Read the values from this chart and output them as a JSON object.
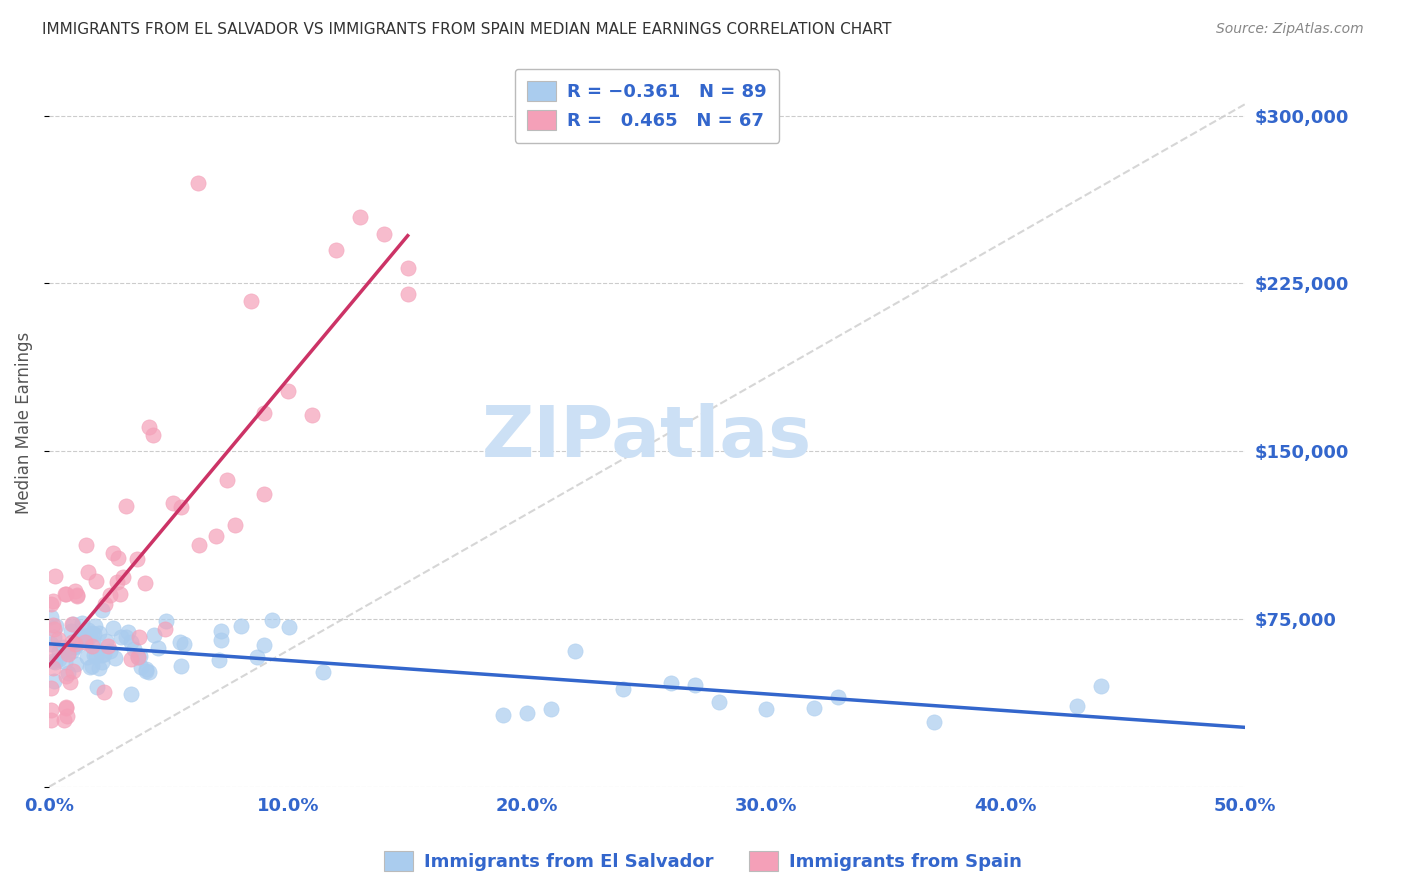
{
  "title": "IMMIGRANTS FROM EL SALVADOR VS IMMIGRANTS FROM SPAIN MEDIAN MALE EARNINGS CORRELATION CHART",
  "source": "Source: ZipAtlas.com",
  "ylabel": "Median Male Earnings",
  "x_min": 0.0,
  "x_max": 0.5,
  "y_min": 0,
  "y_max": 325000,
  "yticks": [
    0,
    75000,
    150000,
    225000,
    300000
  ],
  "ytick_labels_right": [
    "",
    "$75,000",
    "$150,000",
    "$225,000",
    "$300,000"
  ],
  "xtick_vals": [
    0.0,
    0.1,
    0.2,
    0.3,
    0.4,
    0.5
  ],
  "xtick_labels": [
    "0.0%",
    "10.0%",
    "20.0%",
    "30.0%",
    "40.0%",
    "50.0%"
  ],
  "legend_labels": [
    "Immigrants from El Salvador",
    "Immigrants from Spain"
  ],
  "blue_color": "#aaccee",
  "pink_color": "#f4a0b8",
  "blue_line_color": "#3366cc",
  "pink_line_color": "#cc3366",
  "axis_color": "#3366cc",
  "watermark_color": "#cce0f5",
  "background_color": "#ffffff",
  "grid_color": "#cccccc",
  "ref_line_color": "#cccccc"
}
